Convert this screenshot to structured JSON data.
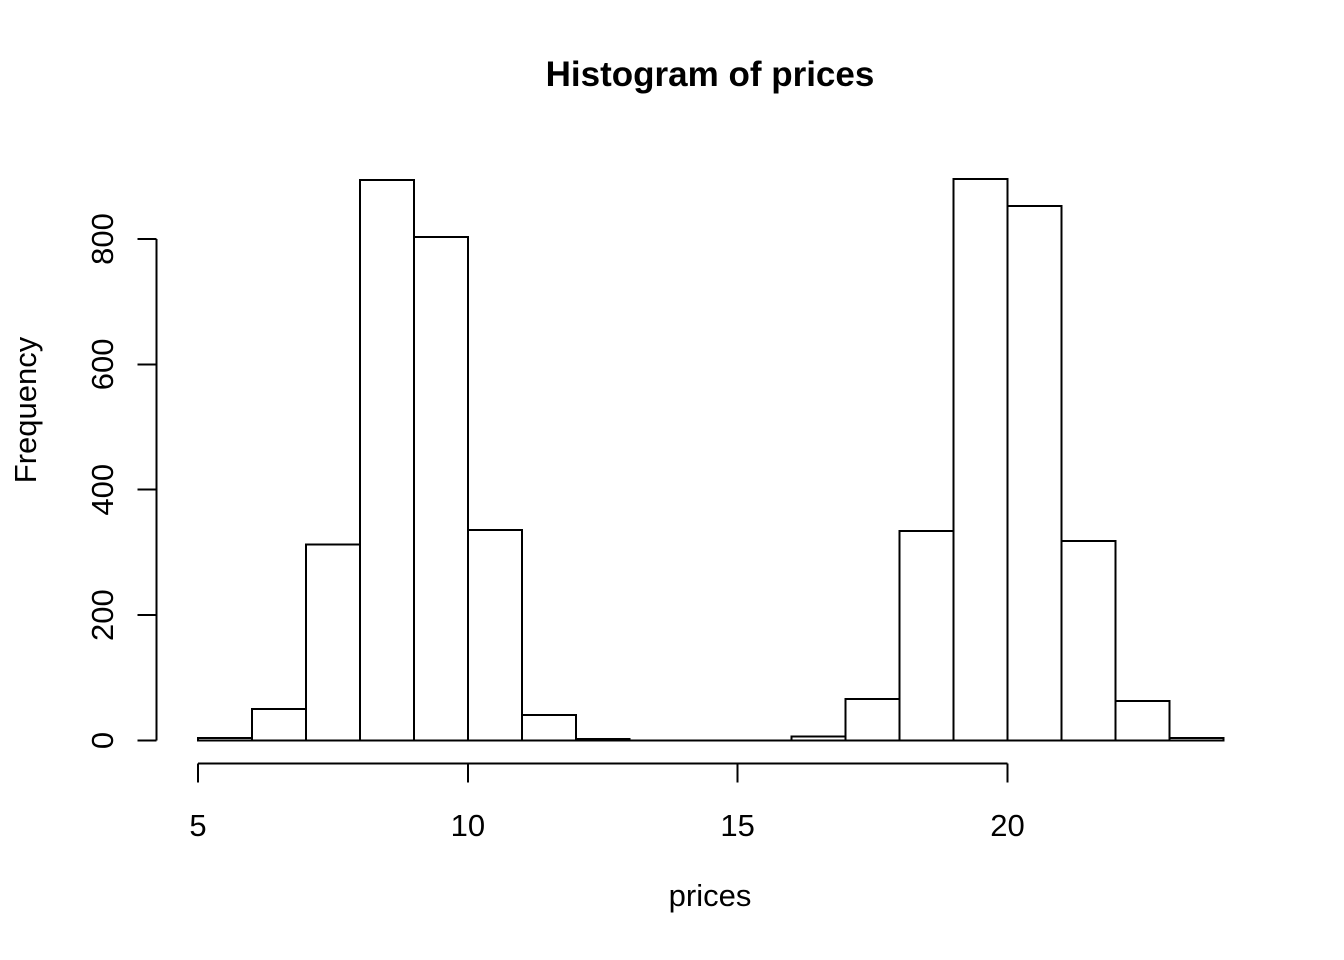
{
  "chart_data": {
    "type": "bar",
    "subtype": "histogram",
    "title": "Histogram of prices",
    "xlabel": "prices",
    "ylabel": "Frequency",
    "bin_breaks": [
      5,
      6,
      7,
      8,
      9,
      10,
      11,
      12,
      13,
      14,
      15,
      16,
      17,
      18,
      19,
      20,
      21,
      22,
      23,
      24
    ],
    "counts": [
      4,
      50,
      313,
      894,
      803,
      336,
      41,
      2,
      0,
      0,
      0,
      6,
      66,
      334,
      896,
      853,
      318,
      63,
      4
    ],
    "x_ticks": [
      5,
      10,
      15,
      20
    ],
    "y_ticks": [
      0,
      200,
      400,
      600,
      800
    ],
    "x_axis_range": [
      5,
      24
    ],
    "y_axis_range": [
      0,
      800
    ],
    "grid": "off",
    "legend": "none",
    "colors": {
      "background": "#ffffff",
      "bar_fill": "#ffffff",
      "line": "#000000",
      "text": "#000000"
    }
  }
}
